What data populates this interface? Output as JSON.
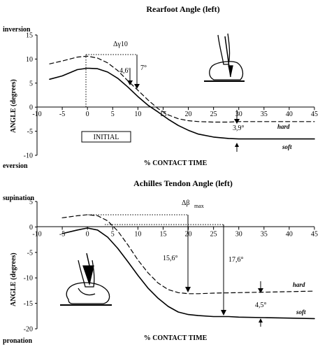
{
  "chart_data": [
    {
      "type": "line",
      "title": "Rearfoot Angle  (left)",
      "xlabel": "% CONTACT TIME",
      "ylabel": "ANGLE (degrees)",
      "y_top_label": "inversion",
      "y_bottom_label": "eversion",
      "xlim": [
        -10,
        45
      ],
      "ylim": [
        -10,
        15
      ],
      "x_ticks": [
        -10,
        -5,
        0,
        5,
        10,
        15,
        20,
        25,
        30,
        35,
        40,
        45
      ],
      "y_ticks": [
        -10,
        -5,
        0,
        5,
        10,
        15
      ],
      "series": [
        {
          "name": "hard",
          "style": "dashed",
          "x": [
            -7.5,
            -5,
            -2,
            0,
            2,
            4,
            6,
            8,
            10,
            12,
            14,
            16,
            18,
            20,
            22,
            25,
            28,
            30,
            35,
            40,
            45
          ],
          "y": [
            9,
            9.6,
            10.4,
            10.6,
            10.2,
            9.2,
            7.6,
            5.5,
            3.5,
            1.5,
            -0.3,
            -1.6,
            -2.4,
            -2.8,
            -3,
            -3.1,
            -3.1,
            -3,
            -3,
            -3,
            -3
          ]
        },
        {
          "name": "soft",
          "style": "solid",
          "x": [
            -7.5,
            -5,
            -2,
            0,
            2,
            4,
            6,
            8,
            10,
            12,
            14,
            16,
            18,
            20,
            22,
            25,
            28,
            30,
            35,
            40,
            45
          ],
          "y": [
            5.8,
            6.5,
            7.8,
            8.1,
            8,
            7.3,
            6,
            4.2,
            2.2,
            0.4,
            -1,
            -2.5,
            -3.8,
            -4.8,
            -5.6,
            -6.2,
            -6.5,
            -6.6,
            -6.6,
            -6.6,
            -6.6
          ]
        }
      ],
      "annotations": {
        "delta_gamma": "Δγ10",
        "val_a": "4,6°",
        "val_b": "7°",
        "val_c": "3,9°",
        "box_label": "INITIAL"
      }
    },
    {
      "type": "line",
      "title": "Achilles Tendon Angle  (left)",
      "xlabel": "% CONTACT TIME",
      "ylabel": "ANGLE (degrees)",
      "y_top_label": "supination",
      "y_bottom_label": "pronation",
      "xlim": [
        -10,
        45
      ],
      "ylim": [
        -20,
        5
      ],
      "x_ticks": [
        -10,
        -5,
        0,
        5,
        10,
        15,
        20,
        25,
        30,
        35,
        40,
        45
      ],
      "y_ticks": [
        -20,
        -15,
        -10,
        -5,
        0,
        5
      ],
      "series": [
        {
          "name": "hard",
          "style": "dashed",
          "x": [
            -5,
            -2,
            0,
            2,
            4,
            6,
            8,
            10,
            12,
            14,
            16,
            18,
            20,
            22,
            25,
            30,
            35,
            40,
            45
          ],
          "y": [
            1.8,
            2.2,
            2.4,
            2.2,
            1.2,
            -0.8,
            -3.5,
            -6.5,
            -9,
            -11,
            -12.3,
            -12.9,
            -13.1,
            -13.1,
            -13,
            -12.9,
            -12.8,
            -12.7,
            -12.6
          ]
        },
        {
          "name": "soft",
          "style": "solid",
          "x": [
            -5,
            -2,
            0,
            2,
            4,
            6,
            8,
            10,
            12,
            14,
            16,
            18,
            20,
            22,
            25,
            28,
            30,
            35,
            40,
            45
          ],
          "y": [
            -1.3,
            -0.6,
            -0.2,
            -0.6,
            -2,
            -4.2,
            -6.8,
            -9.5,
            -12,
            -14,
            -15.6,
            -16.7,
            -17.2,
            -17.4,
            -17.6,
            -17.6,
            -17.7,
            -17.8,
            -17.9,
            -18
          ]
        }
      ],
      "annotations": {
        "delta_beta": "Δβ",
        "delta_beta_sub": "max",
        "val_a": "15,6°",
        "val_b": "17,6°",
        "val_c": "4,5°"
      }
    }
  ]
}
